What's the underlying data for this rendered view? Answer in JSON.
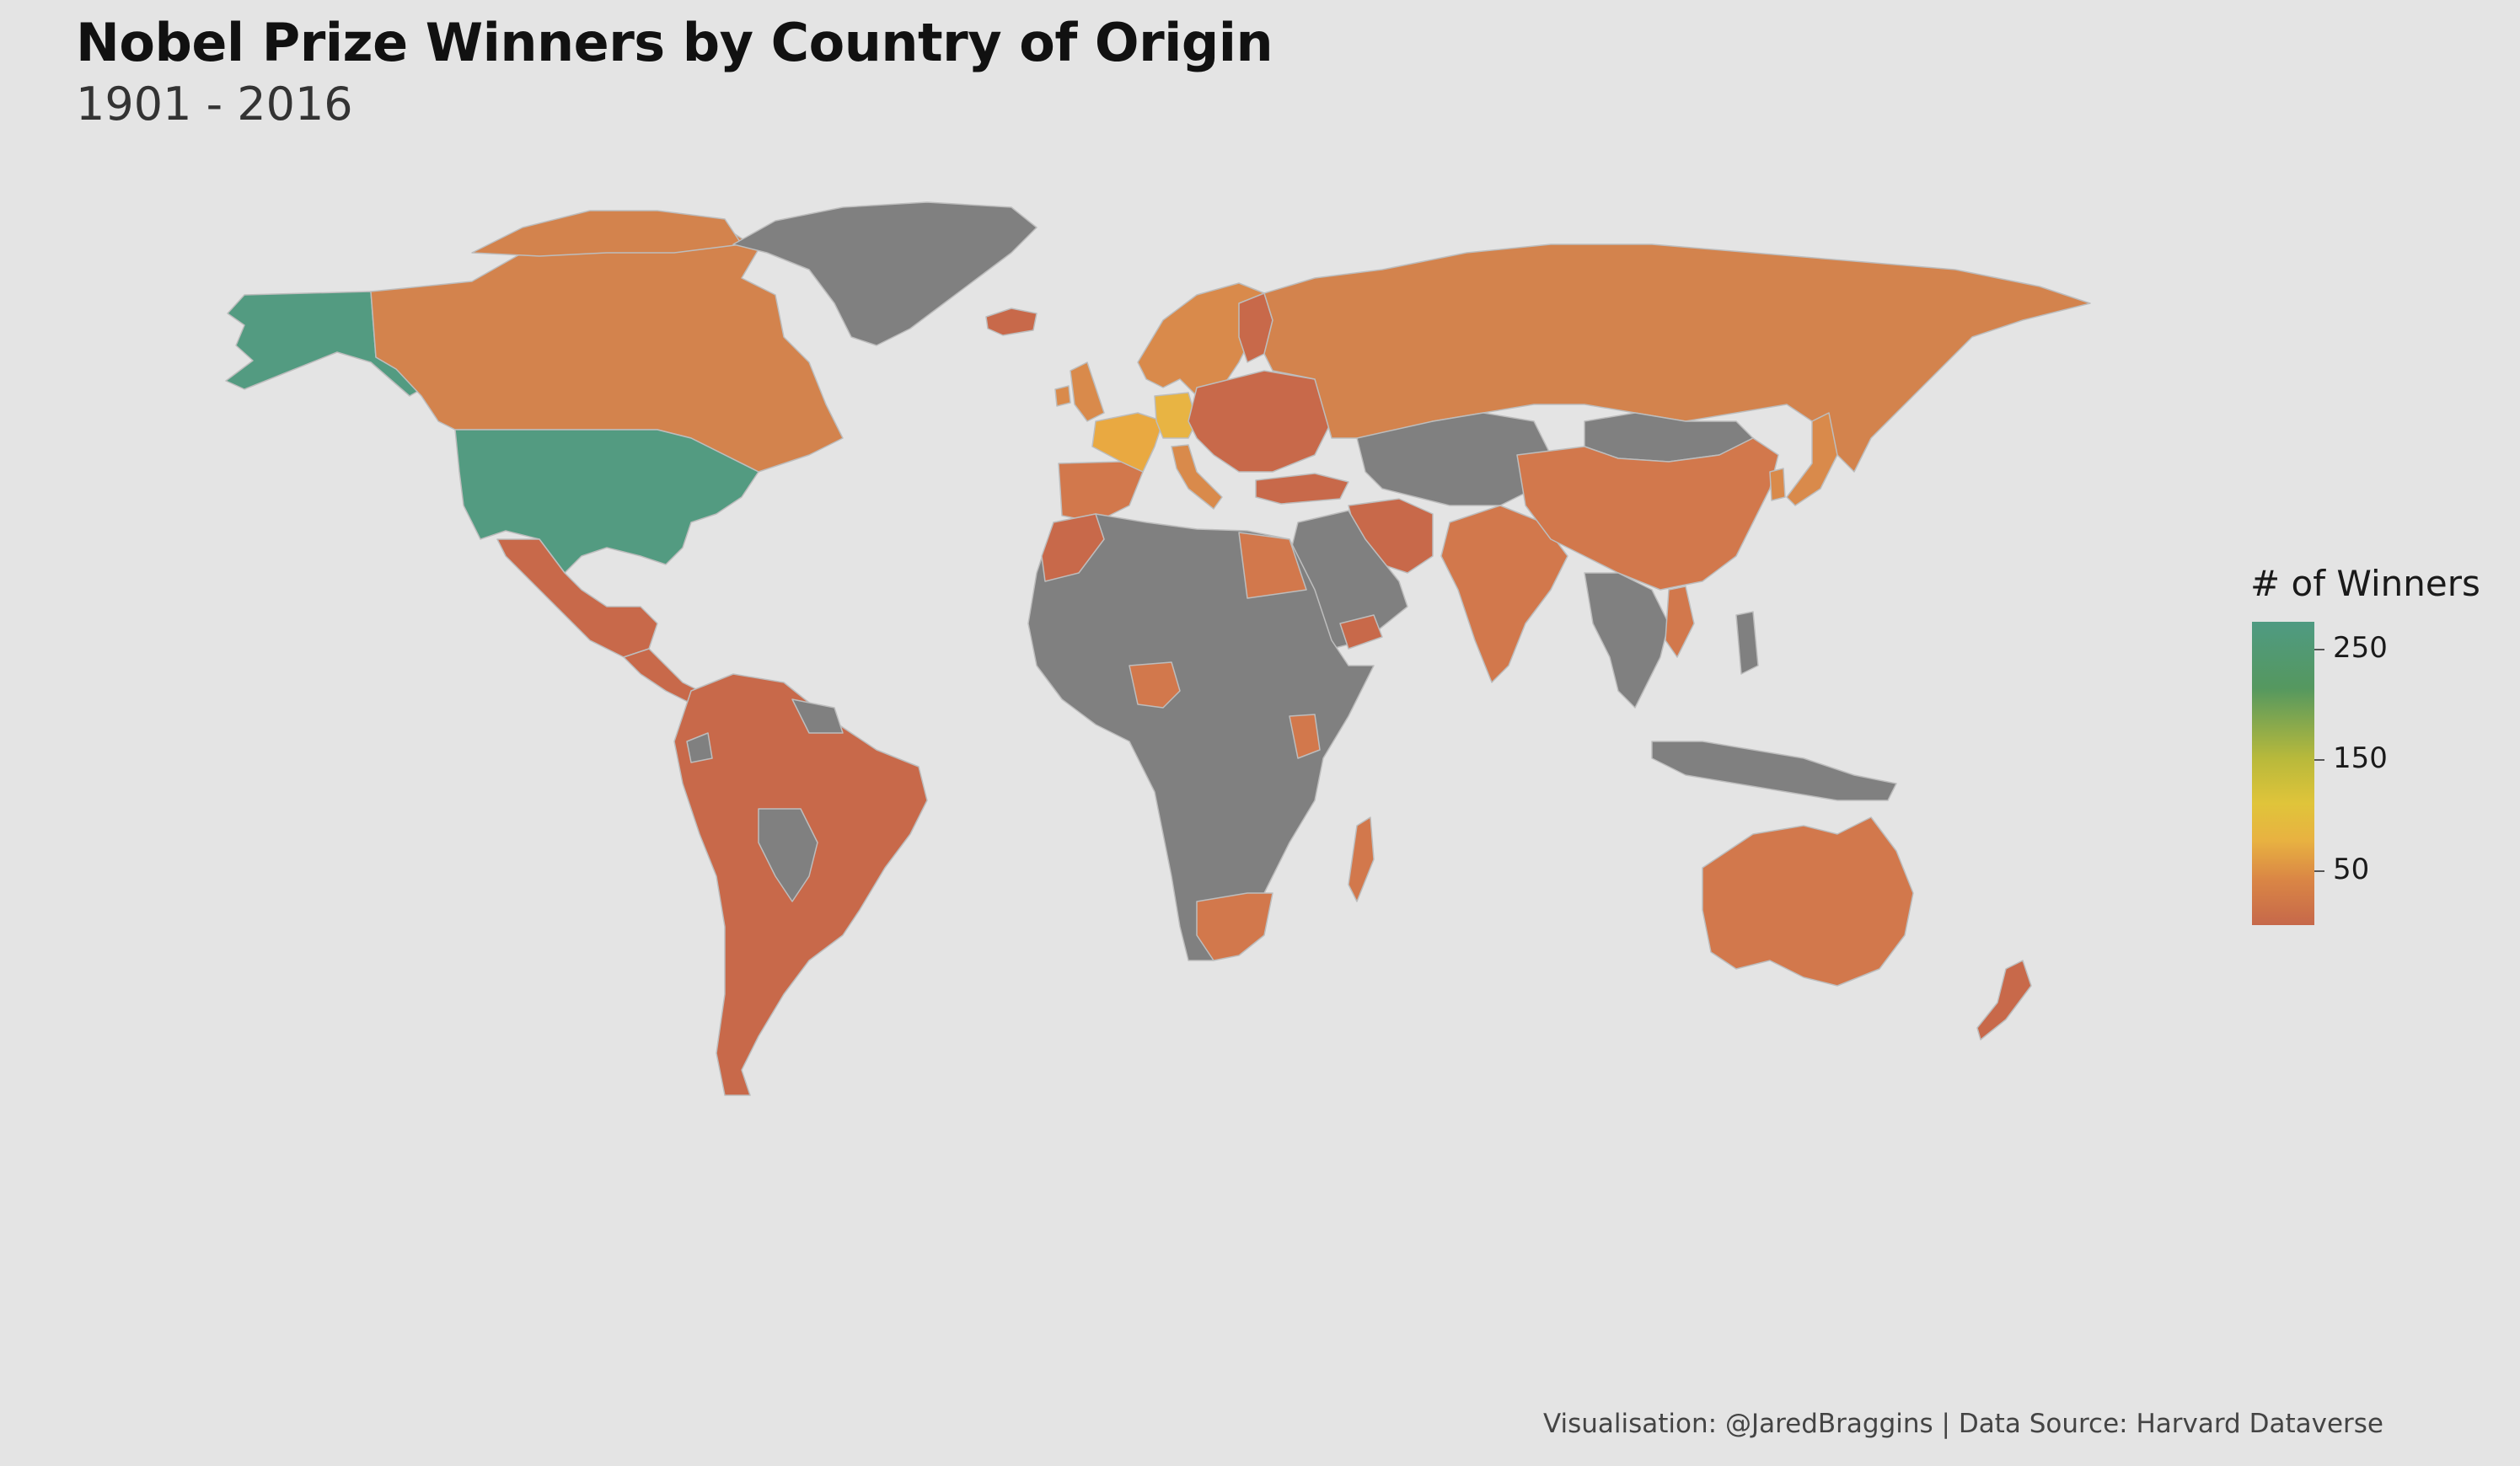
{
  "title": "Nobel Prize Winners by Country of Origin",
  "subtitle": "1901 - 2016",
  "caption": "Visualisation: @JaredBraggins | Data Source: Harvard Dataverse",
  "legend": {
    "title": "# of Winners",
    "ticks": [
      {
        "label": "250",
        "value": 250
      },
      {
        "label": "150",
        "value": 150
      },
      {
        "label": "50",
        "value": 50
      }
    ],
    "range": [
      1,
      275
    ],
    "colors": [
      "#c6684a",
      "#e8b241",
      "#e0c43a",
      "#55985f",
      "#4f9a82"
    ]
  },
  "colors": {
    "background": "#e4e4e4",
    "no_data": "#808080",
    "border": "#bdbdbd",
    "low": "#c6684a",
    "mid": "#e8b241",
    "high": "#4f9a82"
  },
  "regions": [
    {
      "name": "USA",
      "color": "#539b81"
    },
    {
      "name": "Alaska",
      "color": "#539b81"
    },
    {
      "name": "Canada",
      "color": "#d3834d"
    },
    {
      "name": "Greenland",
      "color": "#808080"
    },
    {
      "name": "Mexico",
      "color": "#c8694a"
    },
    {
      "name": "Central America",
      "color": "#c8694a"
    },
    {
      "name": "South America",
      "color": "#c8694a"
    },
    {
      "name": "Bolivia",
      "color": "#808080"
    },
    {
      "name": "Guyana",
      "color": "#808080"
    },
    {
      "name": "Iceland",
      "color": "#c8694a"
    },
    {
      "name": "UK",
      "color": "#d98a4b"
    },
    {
      "name": "Scandinavia",
      "color": "#d98a4b"
    },
    {
      "name": "France",
      "color": "#e9a941"
    },
    {
      "name": "Germany",
      "color": "#e8b443"
    },
    {
      "name": "Iberia",
      "color": "#d2784c"
    },
    {
      "name": "Italy",
      "color": "#d98a4b"
    },
    {
      "name": "Eastern Europe",
      "color": "#c8694a"
    },
    {
      "name": "Russia",
      "color": "#d3834d"
    },
    {
      "name": "Turkey",
      "color": "#c8694a"
    },
    {
      "name": "Central Asia",
      "color": "#808080"
    },
    {
      "name": "Iran",
      "color": "#c8694a"
    },
    {
      "name": "Arabia",
      "color": "#808080"
    },
    {
      "name": "Africa",
      "color": "#808080"
    },
    {
      "name": "Egypt",
      "color": "#d2784c"
    },
    {
      "name": "Morocco",
      "color": "#c8694a"
    },
    {
      "name": "Nigeria",
      "color": "#d2784c"
    },
    {
      "name": "South Africa",
      "color": "#d2784c"
    },
    {
      "name": "Madagascar",
      "color": "#d2784c"
    },
    {
      "name": "India",
      "color": "#d2784c"
    },
    {
      "name": "China",
      "color": "#d2784c"
    },
    {
      "name": "Mongolia",
      "color": "#808080"
    },
    {
      "name": "Japan",
      "color": "#d98a4b"
    },
    {
      "name": "Southeast Asia",
      "color": "#808080"
    },
    {
      "name": "Indonesia",
      "color": "#808080"
    },
    {
      "name": "Australia",
      "color": "#d2784c"
    },
    {
      "name": "New Zealand",
      "color": "#c8694a"
    }
  ]
}
